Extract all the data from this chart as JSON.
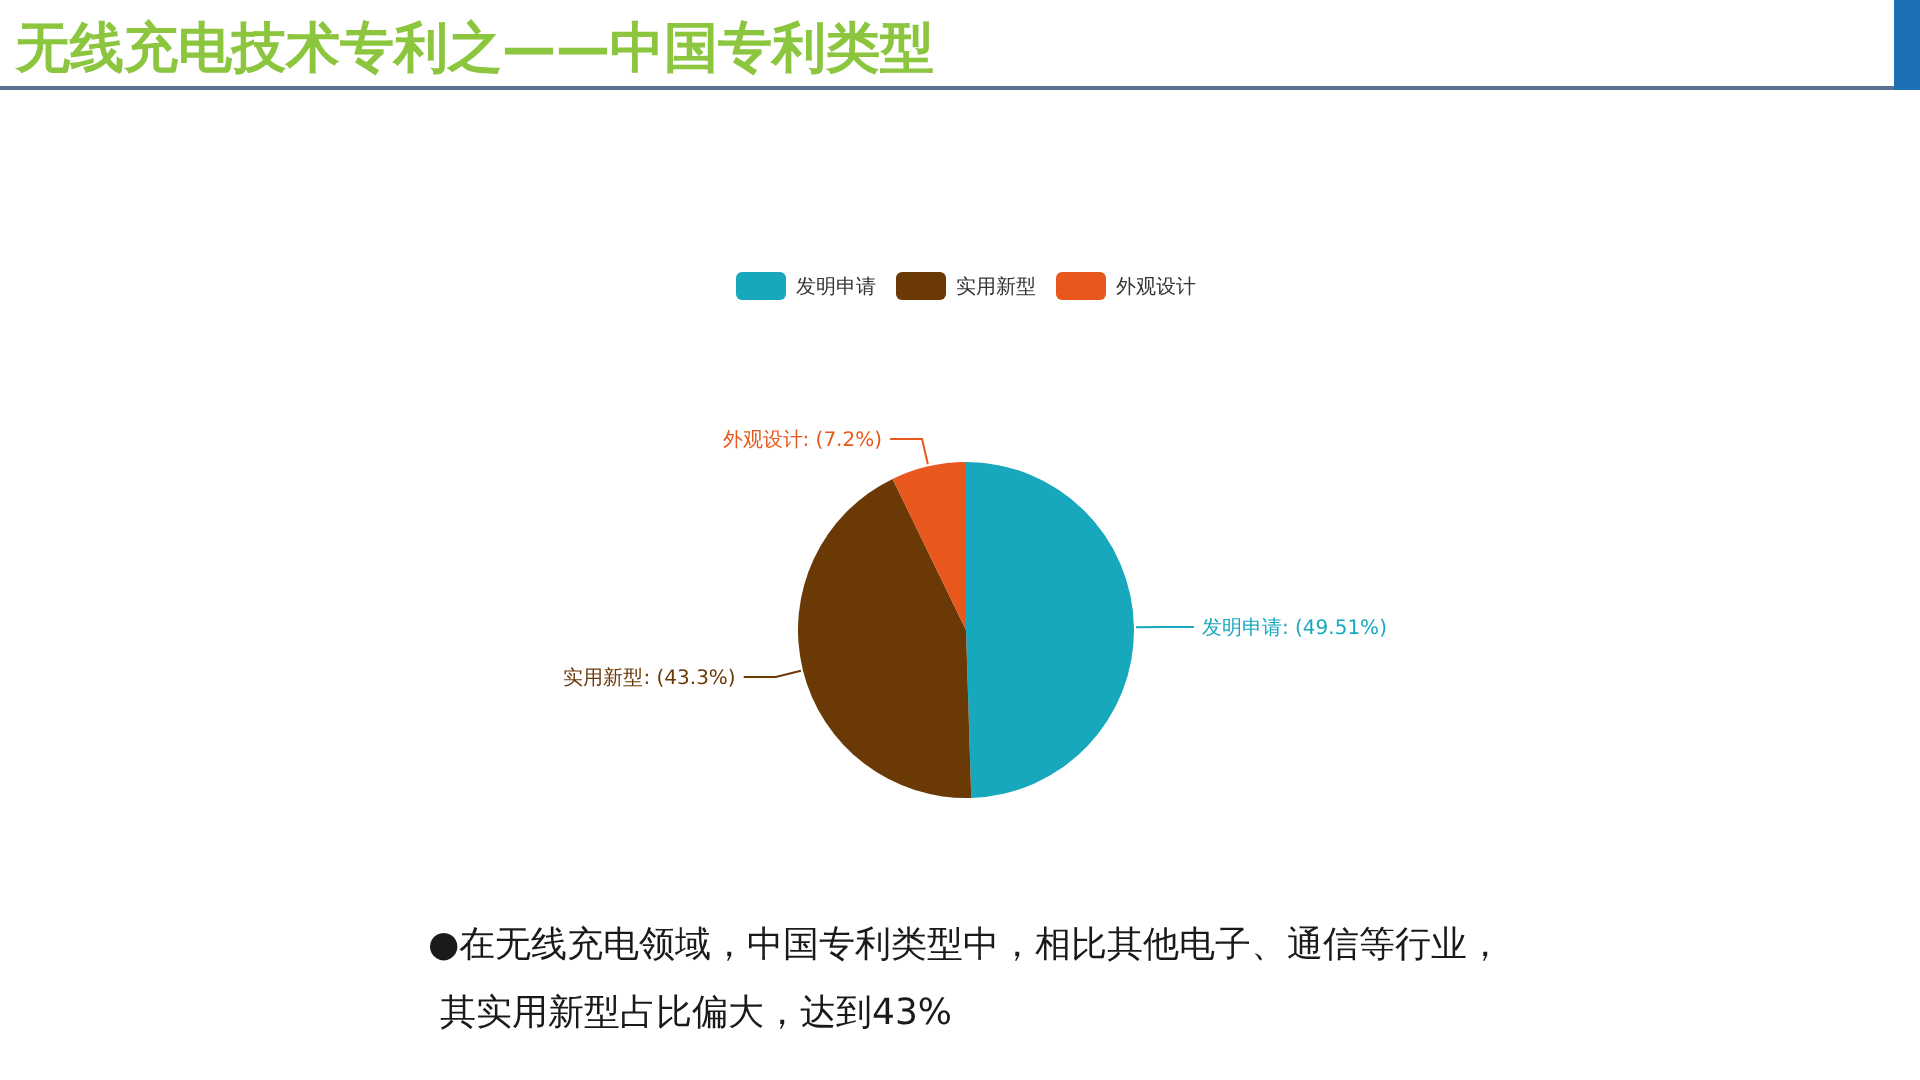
{
  "chart_data": {
    "type": "pie",
    "title": "无线充电技术专利之——中国专利类型",
    "categories": [
      "发明申请",
      "实用新型",
      "外观设计"
    ],
    "values": [
      49.51,
      43.3,
      7.2
    ],
    "colors": [
      "#17a8bd",
      "#6a3906",
      "#e8581c"
    ],
    "value_labels": [
      "发明申请: (49.51%)",
      "实用新型: (43.3%)",
      "外观设计: (7.2%)"
    ],
    "legend": "top",
    "annotations": [
      "●在无线充电领域，中国专利类型中，相比其他电子、通信等行业，其实用新型占比偏大，达到43%"
    ]
  }
}
